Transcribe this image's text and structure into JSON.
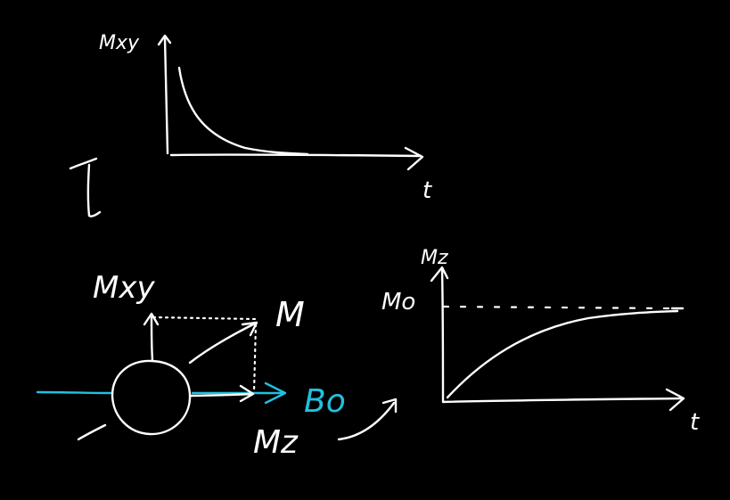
{
  "colors": {
    "background": "#000000",
    "ink": "#ffffff",
    "field": "#22c0e0"
  },
  "t2_plot": {
    "ylabel": "Mxy",
    "xlabel": "t",
    "curve": "exponential-decay"
  },
  "t1_plot": {
    "ylabel": "Mz",
    "xlabel": "t",
    "asymptote_label": "Mo",
    "curve": "exponential-recovery"
  },
  "vector_diagram": {
    "transverse_label": "Mxy",
    "magnetization_label": "M",
    "field_label": "Bo",
    "longitudinal_label": "Mz"
  },
  "bracket_glyph": "T"
}
